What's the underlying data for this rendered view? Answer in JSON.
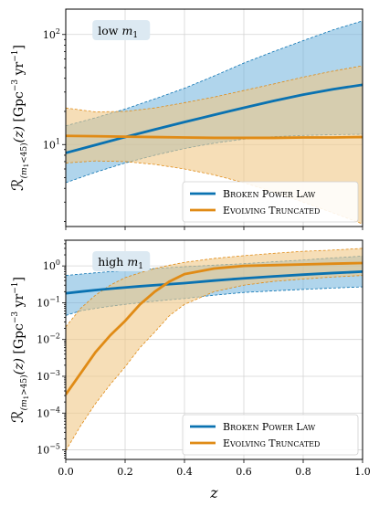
{
  "chart_data": [
    {
      "type": "area",
      "panel_label": "low m",
      "panel_label_sub": "1",
      "ylabel": "ℛ(m1<45)(z) [Gpc⁻³ yr⁻¹]",
      "yscale": "log",
      "ylim": [
        1.8,
        170
      ],
      "xlim": [
        0.0,
        1.0
      ],
      "yticks": [
        {
          "value": 10,
          "label": "10",
          "sup": "1"
        },
        {
          "value": 100,
          "label": "10",
          "sup": "2"
        }
      ],
      "grid": true,
      "legend_position": "lower-right",
      "x": [
        0.0,
        0.1,
        0.2,
        0.3,
        0.4,
        0.5,
        0.6,
        0.7,
        0.8,
        0.9,
        1.0
      ],
      "series": [
        {
          "name": "Broken Power Law",
          "color": "#0a72b1",
          "fill": "#6fb3dc",
          "median": [
            8.4,
            9.9,
            11.7,
            13.7,
            16.0,
            18.6,
            21.6,
            24.9,
            28.4,
            31.8,
            34.9
          ],
          "lower": [
            4.5,
            5.6,
            6.8,
            8.0,
            9.2,
            10.3,
            11.2,
            11.8,
            12.1,
            12.3,
            12.4
          ],
          "upper": [
            14.8,
            17.5,
            21.0,
            26.0,
            32.5,
            42.0,
            55.0,
            70.0,
            88.0,
            110.0,
            133.0
          ]
        },
        {
          "name": "Evolving Truncated",
          "color": "#e08b16",
          "fill": "#f0c887",
          "median": [
            12.0,
            11.9,
            11.8,
            11.7,
            11.6,
            11.5,
            11.5,
            11.5,
            11.6,
            11.6,
            11.7
          ],
          "lower": [
            6.8,
            7.1,
            7.0,
            6.6,
            6.0,
            5.3,
            4.5,
            3.7,
            3.0,
            2.4,
            1.9
          ],
          "upper": [
            21.5,
            19.8,
            20.0,
            21.5,
            24.0,
            27.0,
            31.0,
            35.5,
            41.0,
            46.5,
            52.0
          ]
        }
      ]
    },
    {
      "type": "area",
      "panel_label": "high m",
      "panel_label_sub": "1",
      "ylabel": "ℛ(m1>45)(z) [Gpc⁻³ yr⁻¹]",
      "yscale": "log",
      "ylim": [
        5.5e-06,
        5
      ],
      "xlim": [
        0.0,
        1.0
      ],
      "xlabel": "z",
      "xticks": [
        "0.0",
        "0.2",
        "0.4",
        "0.6",
        "0.8",
        "1.0"
      ],
      "yticks": [
        {
          "value": 1e-05,
          "label": "10",
          "sup": "−5"
        },
        {
          "value": 0.0001,
          "label": "10",
          "sup": "−4"
        },
        {
          "value": 0.001,
          "label": "10",
          "sup": "−3"
        },
        {
          "value": 0.01,
          "label": "10",
          "sup": "−2"
        },
        {
          "value": 0.1,
          "label": "10",
          "sup": "−1"
        },
        {
          "value": 1,
          "label": "10",
          "sup": "0"
        }
      ],
      "grid": true,
      "legend_position": "lower-right",
      "x": [
        0.0,
        0.05,
        0.1,
        0.15,
        0.2,
        0.25,
        0.3,
        0.35,
        0.4,
        0.5,
        0.6,
        0.7,
        0.8,
        0.9,
        1.0
      ],
      "series": [
        {
          "name": "Broken Power Law",
          "color": "#0a72b1",
          "fill": "#6fb3dc",
          "median": [
            0.18,
            0.2,
            0.22,
            0.24,
            0.26,
            0.28,
            0.3,
            0.32,
            0.34,
            0.4,
            0.46,
            0.52,
            0.58,
            0.64,
            0.7
          ],
          "lower": [
            0.045,
            0.06,
            0.07,
            0.08,
            0.09,
            0.1,
            0.11,
            0.12,
            0.13,
            0.16,
            0.19,
            0.21,
            0.23,
            0.25,
            0.27
          ],
          "upper": [
            0.55,
            0.6,
            0.65,
            0.7,
            0.75,
            0.8,
            0.85,
            0.9,
            0.95,
            1.05,
            1.15,
            1.3,
            1.45,
            1.65,
            1.85
          ]
        },
        {
          "name": "Evolving Truncated",
          "color": "#e08b16",
          "fill": "#f0c887",
          "median": [
            0.00032,
            0.0012,
            0.0045,
            0.013,
            0.032,
            0.09,
            0.2,
            0.38,
            0.6,
            0.85,
            1.0,
            1.05,
            1.1,
            1.15,
            1.2
          ],
          "lower": [
            9.5e-06,
            4.5e-05,
            0.00018,
            0.0006,
            0.0018,
            0.006,
            0.016,
            0.045,
            0.09,
            0.2,
            0.3,
            0.38,
            0.44,
            0.5,
            0.55
          ],
          "upper": [
            0.022,
            0.07,
            0.16,
            0.3,
            0.48,
            0.65,
            0.85,
            1.05,
            1.25,
            1.6,
            1.9,
            2.2,
            2.5,
            2.7,
            3.0
          ]
        }
      ]
    }
  ]
}
